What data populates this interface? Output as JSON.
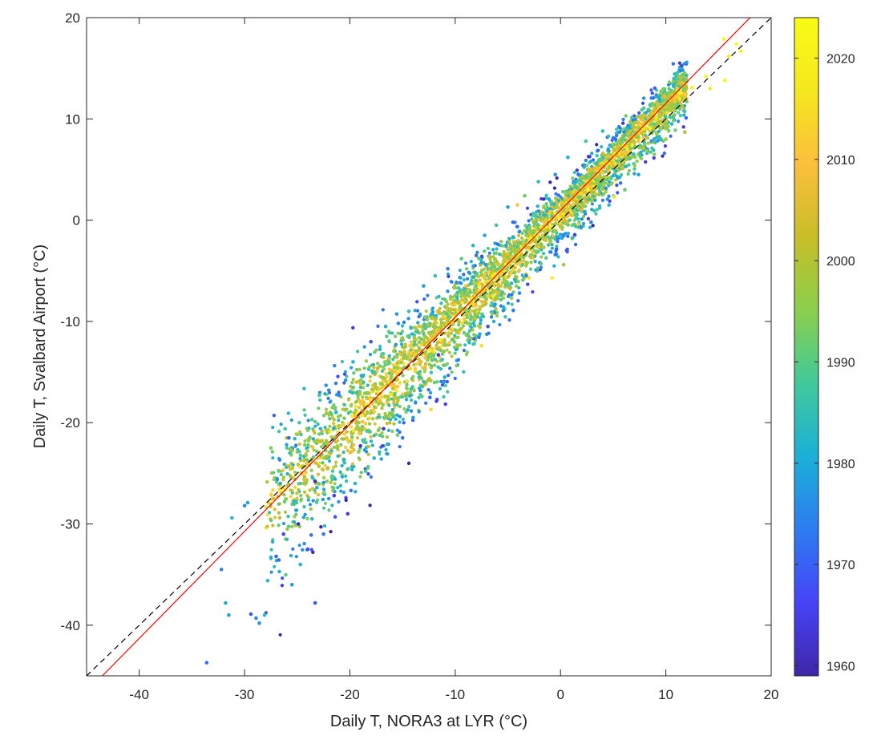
{
  "chart_data": {
    "type": "scatter",
    "xlabel": "Daily T, NORA3 at LYR (°C)",
    "ylabel": "Daily T, Svalbard Airport (°C)",
    "xlim": [
      -45,
      20
    ],
    "ylim": [
      -45,
      20
    ],
    "xticks": [
      "-40",
      "-30",
      "-20",
      "-10",
      "0",
      "10",
      "20"
    ],
    "yticks": [
      "-40",
      "-30",
      "-20",
      "-10",
      "0",
      "10",
      "20"
    ],
    "grid": false,
    "color_variable": "year",
    "colorbar": {
      "range": [
        1959,
        2024
      ],
      "ticks": [
        "1960",
        "1970",
        "1980",
        "1990",
        "2000",
        "2010",
        "2020"
      ],
      "colormap": [
        "#3e26a8",
        "#4743f7",
        "#2d7cf0",
        "#1bb0d7",
        "#41c99a",
        "#8bcf4c",
        "#c8be27",
        "#fbbf3c",
        "#f5e71f",
        "#f9fb15"
      ]
    },
    "reference_lines": [
      {
        "kind": "1:1 line",
        "style": "dashed",
        "color": "#000000",
        "points": [
          [
            -45,
            -45
          ],
          [
            20,
            20
          ]
        ]
      },
      {
        "kind": "regression fit",
        "style": "solid",
        "color": "#ff0000",
        "points": [
          [
            -43.5,
            -45
          ],
          [
            18,
            20
          ]
        ]
      }
    ],
    "points": [
      [
        -33.6,
        -43.7,
        1972
      ],
      [
        -31.5,
        -39.0,
        1978
      ],
      [
        -31.8,
        -37.8,
        1980
      ],
      [
        -29.4,
        -38.9,
        1968
      ],
      [
        -28.9,
        -39.3,
        1975
      ],
      [
        -28.6,
        -39.8,
        1976
      ],
      [
        -28.1,
        -39.0,
        1985
      ],
      [
        -23.3,
        -37.8,
        1969
      ],
      [
        -32.2,
        -34.5,
        1974
      ],
      [
        -31.2,
        -29.4,
        1982
      ],
      [
        -30.0,
        -28.2,
        1975
      ],
      [
        -29.7,
        -27.9,
        1979
      ],
      [
        -27.8,
        -35.6,
        1983
      ],
      [
        -27.0,
        -33.2,
        1971
      ],
      [
        -26.3,
        -31.0,
        1966
      ],
      [
        -25.5,
        -36.0,
        1978
      ],
      [
        -24.7,
        -34.0,
        1981
      ],
      [
        -24.0,
        -32.5,
        1967
      ],
      [
        -23.6,
        -29.5,
        1984
      ],
      [
        -22.5,
        -31.0,
        1972
      ],
      [
        -22.0,
        -27.5,
        1977
      ],
      [
        -21.4,
        -29.3,
        1969
      ],
      [
        -20.2,
        -29.0,
        1964
      ],
      [
        -19.5,
        -26.0,
        1983
      ],
      [
        -26.6,
        -26.0,
        1980
      ],
      [
        -25.7,
        -23.0,
        1985
      ],
      [
        -27.5,
        -22.5,
        1994
      ],
      [
        -26.9,
        -25.6,
        1976
      ],
      [
        -24.8,
        -20.0,
        1987
      ],
      [
        -25.8,
        -21.5,
        1970
      ],
      [
        -23.6,
        -19.7,
        1990
      ],
      [
        -22.9,
        -17.3,
        1988
      ],
      [
        -22.0,
        -16.8,
        1975
      ],
      [
        -21.4,
        -18.5,
        1993
      ],
      [
        -20.4,
        -15.8,
        1978
      ],
      [
        -19.7,
        -14.0,
        1982
      ],
      [
        -18.0,
        -12.0,
        1968
      ],
      [
        -16.6,
        -10.5,
        1981
      ],
      [
        -15.4,
        -10.2,
        1976
      ],
      [
        -14.4,
        -9.0,
        1984
      ],
      [
        -13.0,
        -6.5,
        1979
      ],
      [
        -11.9,
        -5.5,
        1986
      ],
      [
        -10.7,
        -4.8,
        1974
      ],
      [
        -9.4,
        -3.8,
        1990
      ],
      [
        -8.3,
        -2.5,
        1983
      ],
      [
        -7.2,
        -1.5,
        1980
      ],
      [
        -6.1,
        -0.5,
        1987
      ],
      [
        -5.0,
        1.3,
        1978
      ],
      [
        -3.4,
        2.4,
        1992
      ],
      [
        -2.1,
        3.8,
        1985
      ],
      [
        -0.5,
        4.5,
        1977
      ],
      [
        0.7,
        6.2,
        1981
      ],
      [
        2.4,
        7.8,
        1989
      ],
      [
        4.0,
        8.8,
        1984
      ],
      [
        6.2,
        10.3,
        1993
      ],
      [
        8.5,
        11.4,
        1988
      ],
      [
        10.3,
        12.2,
        2001
      ],
      [
        -15.0,
        -21.5,
        1972
      ],
      [
        -14.0,
        -19.5,
        1979
      ],
      [
        -12.4,
        -17.5,
        1970
      ],
      [
        -11.0,
        -15.5,
        1981
      ],
      [
        -9.7,
        -13.8,
        1974
      ],
      [
        -8.2,
        -12.2,
        1987
      ],
      [
        -6.9,
        -10.5,
        1968
      ],
      [
        -5.4,
        -8.6,
        1983
      ],
      [
        -3.9,
        -7.2,
        1976
      ],
      [
        -2.2,
        -5.0,
        1986
      ],
      [
        -0.5,
        -3.4,
        1972
      ],
      [
        1.1,
        -1.8,
        1988
      ],
      [
        2.9,
        -0.2,
        1975
      ],
      [
        4.6,
        1.5,
        1983
      ],
      [
        6.1,
        3.0,
        1991
      ],
      [
        7.4,
        4.5,
        1978
      ],
      [
        8.9,
        6.5,
        1994
      ],
      [
        10.0,
        8.0,
        1996
      ],
      [
        11.8,
        8.7,
        1999
      ],
      [
        -17.7,
        -23.5,
        1982
      ],
      [
        -18.5,
        -24.8,
        1989
      ],
      [
        -16.9,
        -22.3,
        1966
      ],
      [
        -19.9,
        -26.7,
        1973
      ],
      [
        -3.0,
        -5.7,
        2016
      ],
      [
        -6.4,
        -7.5,
        2020
      ],
      [
        1.7,
        -0.4,
        2012
      ],
      [
        5.1,
        2.3,
        2018
      ],
      [
        -1.0,
        0.0,
        2021
      ],
      [
        -2.8,
        -1.8,
        2023
      ],
      [
        0.3,
        0.6,
        2017
      ],
      [
        2.6,
        3.0,
        2022
      ],
      [
        -5.2,
        -4.4,
        2019
      ],
      [
        -8.6,
        -8.4,
        2015
      ],
      [
        -11.4,
        -11.8,
        2020
      ],
      [
        -13.8,
        -14.9,
        2014
      ],
      [
        -16.1,
        -17.2,
        2018
      ],
      [
        -18.5,
        -20.1,
        2011
      ],
      [
        -20.3,
        -21.5,
        2008
      ],
      [
        -22.6,
        -24.6,
        2004
      ],
      [
        -24.4,
        -26.0,
        1998
      ],
      [
        -26.2,
        -27.8,
        1991
      ],
      [
        6.8,
        7.4,
        2020
      ],
      [
        8.5,
        9.1,
        2022
      ],
      [
        10.1,
        10.6,
        2016
      ],
      [
        11.3,
        12.0,
        2019
      ],
      [
        12.5,
        13.1,
        2023
      ],
      [
        13.8,
        14.2,
        2021
      ],
      [
        14.2,
        13.0,
        2018
      ],
      [
        15.6,
        13.8,
        2023
      ],
      [
        15.5,
        17.9,
        2024
      ],
      [
        16.7,
        17.4,
        2024
      ],
      [
        17.1,
        16.7,
        2022
      ],
      [
        16.0,
        16.2,
        2021
      ],
      [
        -0.8,
        -5.7,
        2019
      ],
      [
        0.3,
        -4.4,
        1996
      ],
      [
        -4.1,
        1.5,
        2012
      ],
      [
        -9.0,
        -6.5,
        2009
      ],
      [
        -14.8,
        -13.0,
        2006
      ],
      [
        -17.6,
        -16.4,
        2002
      ],
      [
        -21.1,
        -19.4,
        1997
      ],
      [
        3.7,
        5.1,
        2010
      ],
      [
        5.8,
        6.5,
        2007
      ],
      [
        7.9,
        8.0,
        2013
      ],
      [
        -7.5,
        -12.4,
        2016
      ],
      [
        -12.3,
        -18.7,
        2014
      ],
      [
        -16.8,
        -20.6,
        1963
      ],
      [
        -23.3,
        -25.8,
        1961
      ],
      [
        -24.9,
        -30.0,
        1960
      ],
      [
        -21.5,
        -27.2,
        1965
      ],
      [
        -19.0,
        -22.3,
        1962
      ],
      [
        -11.6,
        -13.3,
        1964
      ]
    ]
  }
}
